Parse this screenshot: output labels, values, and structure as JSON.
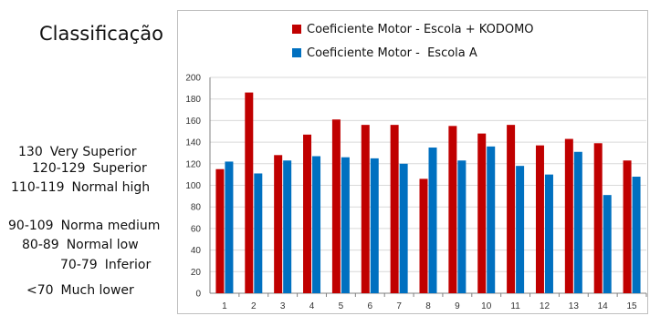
{
  "classification": {
    "title": "Classificação",
    "entries": [
      {
        "range": "130",
        "label": "Very Superior"
      },
      {
        "range": "120-129",
        "label": "Superior"
      },
      {
        "range": "110-119",
        "label": "Normal high"
      },
      {
        "range": "90-109",
        "label": "Norma medium"
      },
      {
        "range": "80-89",
        "label": "Normal low"
      },
      {
        "range": "70-79",
        "label": "Inferior"
      },
      {
        "range": "<70",
        "label": "Much lower"
      }
    ]
  },
  "chart_data": {
    "type": "bar",
    "categories": [
      "1",
      "2",
      "3",
      "4",
      "5",
      "6",
      "7",
      "8",
      "9",
      "10",
      "11",
      "12",
      "13",
      "14",
      "15"
    ],
    "series": [
      {
        "name": "Coeficiente Motor - Escola + KODOMO",
        "color": "#c00000",
        "values": [
          115,
          186,
          128,
          147,
          161,
          156,
          156,
          106,
          155,
          148,
          156,
          137,
          143,
          139,
          123
        ]
      },
      {
        "name": "Coeficiente Motor -  Escola A",
        "color": "#0070c0",
        "values": [
          122,
          111,
          123,
          127,
          126,
          125,
          120,
          135,
          123,
          136,
          118,
          110,
          131,
          91,
          108
        ]
      }
    ],
    "ylim": [
      0,
      200
    ],
    "yticks": [
      0,
      20,
      40,
      60,
      80,
      100,
      120,
      140,
      160,
      180,
      200
    ],
    "grid": true,
    "legend_position": "top"
  }
}
